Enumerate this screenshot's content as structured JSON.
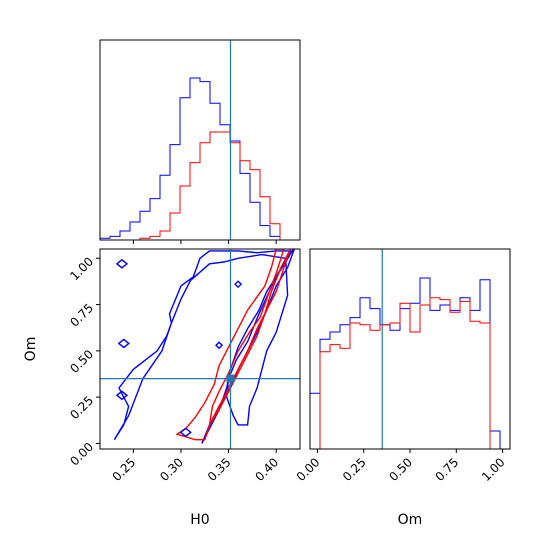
{
  "chart_data": [
    {
      "id": "h0-marginal",
      "type": "line",
      "subtype": "step-histogram",
      "xlim": [
        0.215,
        0.425
      ],
      "truth": 0.352,
      "x_bin_edges": [
        0.215,
        0.2255,
        0.236,
        0.2465,
        0.257,
        0.2675,
        0.278,
        0.2885,
        0.299,
        0.3095,
        0.32,
        0.3305,
        0.341,
        0.3515,
        0.362,
        0.3725,
        0.383,
        0.3935,
        0.404,
        0.4145,
        0.425
      ],
      "series": [
        {
          "color": "#0000ff",
          "values": [
            0.01,
            0.02,
            0.05,
            0.1,
            0.16,
            0.23,
            0.36,
            0.53,
            0.79,
            0.9,
            0.88,
            0.76,
            0.64,
            0.55,
            0.37,
            0.21,
            0.08,
            0.02,
            0.0,
            0.0
          ]
        },
        {
          "color": "#ff0000",
          "values": [
            0.0,
            0.0,
            0.0,
            0.0,
            0.01,
            0.02,
            0.05,
            0.15,
            0.3,
            0.43,
            0.54,
            0.6,
            0.6,
            0.54,
            0.44,
            0.39,
            0.24,
            0.09,
            0.0,
            0.0
          ]
        }
      ],
      "ticks": [
        0.25,
        0.3,
        0.35,
        0.4
      ]
    },
    {
      "id": "om-marginal",
      "type": "line",
      "subtype": "step-histogram",
      "xlim": [
        -0.04,
        1.04
      ],
      "truth": 0.35,
      "x_bin_edges": [
        -0.04,
        0.014,
        0.068,
        0.122,
        0.176,
        0.23,
        0.284,
        0.338,
        0.392,
        0.446,
        0.5,
        0.554,
        0.608,
        0.662,
        0.716,
        0.77,
        0.824,
        0.878,
        0.932,
        0.986,
        1.04
      ],
      "series": [
        {
          "color": "#0000ff",
          "values": [
            0.31,
            0.61,
            0.65,
            0.69,
            0.73,
            0.84,
            0.78,
            0.69,
            0.66,
            0.78,
            0.81,
            0.95,
            0.77,
            0.8,
            0.77,
            0.84,
            0.77,
            0.94,
            0.1,
            0.0
          ]
        },
        {
          "color": "#ff0000",
          "values": [
            0.0,
            0.54,
            0.58,
            0.56,
            0.7,
            0.69,
            0.66,
            0.69,
            0.7,
            0.81,
            0.65,
            0.8,
            0.84,
            0.83,
            0.76,
            0.82,
            0.71,
            0.7,
            0.0,
            0.0
          ]
        }
      ],
      "ticks": [
        0.0,
        0.25,
        0.5,
        0.75,
        1.0
      ],
      "tick_labels": [
        "0.00",
        "0.25",
        "0.50",
        "0.75",
        "1.00"
      ],
      "xlabel": "Om"
    },
    {
      "id": "h0-om-joint",
      "type": "scatter",
      "subtype": "contour",
      "xlim": [
        0.215,
        0.425
      ],
      "ylim": [
        -0.03,
        1.05
      ],
      "truth": {
        "x": 0.352,
        "y": 0.35
      },
      "xlabel": "H0",
      "ylabel": "Om",
      "x_ticks": [
        0.25,
        0.3,
        0.35,
        0.4
      ],
      "y_ticks": [
        0.0,
        0.25,
        0.5,
        0.75,
        1.0
      ],
      "y_tick_labels": [
        "0.00",
        "0.25",
        "0.50",
        "0.75",
        "1.00"
      ],
      "contours": [
        {
          "color": "#0000ff",
          "x": [
            0.23,
            0.24,
            0.245,
            0.235,
            0.25,
            0.275,
            0.285,
            0.29,
            0.288,
            0.292,
            0.3,
            0.313,
            0.32,
            0.33,
            0.345,
            0.36,
            0.38,
            0.4,
            0.415,
            0.4,
            0.382,
            0.37,
            0.358,
            0.35,
            0.348,
            0.355,
            0.36,
            0.37,
            0.372,
            0.38,
            0.39,
            0.4,
            0.412,
            0.41,
            0.385,
            0.36,
            0.345,
            0.33,
            0.31,
            0.3,
            0.29,
            0.28,
            0.26,
            0.245,
            0.23
          ],
          "y": [
            0.02,
            0.1,
            0.2,
            0.3,
            0.4,
            0.5,
            0.58,
            0.65,
            0.7,
            0.75,
            0.85,
            0.9,
            1.0,
            1.04,
            1.04,
            1.04,
            1.03,
            1.04,
            1.04,
            0.9,
            0.7,
            0.55,
            0.45,
            0.35,
            0.25,
            0.15,
            0.1,
            0.1,
            0.2,
            0.3,
            0.5,
            0.6,
            0.8,
            1.0,
            1.02,
            1.0,
            0.98,
            0.97,
            0.88,
            0.78,
            0.65,
            0.5,
            0.35,
            0.15,
            0.02
          ]
        },
        {
          "color": "#0000ff",
          "x": [
            0.322,
            0.33,
            0.34,
            0.348,
            0.352,
            0.36,
            0.37,
            0.382,
            0.39,
            0.4,
            0.41,
            0.418,
            0.419,
            0.412,
            0.4,
            0.39,
            0.38,
            0.37,
            0.36,
            0.352,
            0.34,
            0.33,
            0.322
          ],
          "y": [
            0.0,
            0.08,
            0.18,
            0.3,
            0.4,
            0.52,
            0.62,
            0.72,
            0.82,
            0.9,
            0.98,
            1.05,
            1.05,
            0.95,
            0.85,
            0.72,
            0.6,
            0.5,
            0.4,
            0.3,
            0.2,
            0.1,
            0.0
          ]
        },
        {
          "color": "#ff0000",
          "x": [
            0.296,
            0.315,
            0.325,
            0.33,
            0.333,
            0.34,
            0.35,
            0.36,
            0.372,
            0.383,
            0.39,
            0.395,
            0.4,
            0.405,
            0.408,
            0.4,
            0.395,
            0.388,
            0.37,
            0.36,
            0.35,
            0.34,
            0.335,
            0.325,
            0.315,
            0.305,
            0.296
          ],
          "y": [
            0.05,
            0.02,
            0.02,
            0.1,
            0.2,
            0.28,
            0.38,
            0.5,
            0.6,
            0.68,
            0.78,
            0.85,
            0.92,
            1.0,
            1.05,
            1.05,
            0.95,
            0.85,
            0.72,
            0.62,
            0.52,
            0.42,
            0.32,
            0.22,
            0.14,
            0.08,
            0.05
          ]
        },
        {
          "color": "#ff0000",
          "x": [
            0.325,
            0.33,
            0.34,
            0.35,
            0.36,
            0.37,
            0.38,
            0.39,
            0.4,
            0.405,
            0.41,
            0.415,
            0.415,
            0.405,
            0.395,
            0.388,
            0.38,
            0.37,
            0.36,
            0.35,
            0.34,
            0.33,
            0.325
          ],
          "y": [
            0.02,
            0.1,
            0.2,
            0.3,
            0.4,
            0.5,
            0.62,
            0.72,
            0.82,
            0.9,
            0.98,
            1.05,
            1.05,
            0.95,
            0.82,
            0.7,
            0.58,
            0.48,
            0.38,
            0.28,
            0.18,
            0.1,
            0.02
          ]
        }
      ]
    }
  ]
}
